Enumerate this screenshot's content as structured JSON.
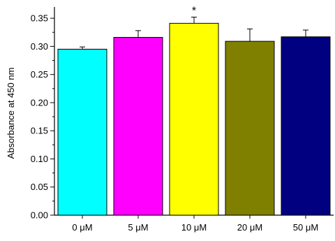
{
  "chart_data": {
    "type": "bar",
    "categories": [
      "0 μM",
      "5 μM",
      "10 μM",
      "20 μM",
      "50 μM"
    ],
    "values": [
      0.295,
      0.316,
      0.341,
      0.309,
      0.317
    ],
    "errors": [
      0.004,
      0.012,
      0.011,
      0.022,
      0.012
    ],
    "colors": [
      "#00ffff",
      "#ff00ff",
      "#ffff00",
      "#808000",
      "#000080"
    ],
    "annotations": [
      {
        "category_index": 2,
        "text": "*"
      }
    ],
    "xlabel": "",
    "ylabel": "Absorbance at 450 nm",
    "ylim": [
      0,
      0.37
    ],
    "yticks": [
      0.0,
      0.05,
      0.1,
      0.15,
      0.2,
      0.25,
      0.3,
      0.35
    ],
    "ytick_labels": [
      "0.00",
      "0.05",
      "0.10",
      "0.15",
      "0.20",
      "0.25",
      "0.30",
      "0.35"
    ],
    "grid": false
  }
}
